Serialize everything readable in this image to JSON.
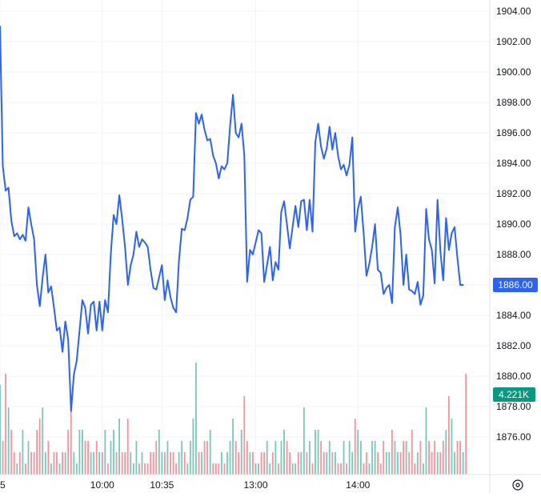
{
  "chart_data": {
    "type": "line",
    "title": "",
    "xlabel": "",
    "ylabel": "",
    "ylim": [
      1874.5,
      1905
    ],
    "y_ticks": [
      "1904.00",
      "1902.00",
      "1900.00",
      "1898.00",
      "1896.00",
      "1894.00",
      "1892.00",
      "1890.00",
      "1888.00",
      "1886.00",
      "1884.00",
      "1882.00",
      "1880.00",
      "1878.00",
      "1876.00"
    ],
    "x_ticks": [
      {
        "label": "5",
        "index": 0
      },
      {
        "label": "10:00",
        "index": 36
      },
      {
        "label": "10:35",
        "index": 57
      },
      {
        "label": "13:00",
        "index": 90
      },
      {
        "label": "14:00",
        "index": 126
      }
    ],
    "grid": true,
    "series": [
      {
        "color": "#2962ff",
        "values": [
          1903.0,
          1893.8,
          1892.2,
          1892.4,
          1890.2,
          1889.2,
          1889.4,
          1889.0,
          1889.3,
          1888.9,
          1891.1,
          1890.0,
          1889.0,
          1886.0,
          1884.6,
          1886.5,
          1888.0,
          1885.5,
          1885.9,
          1884.5,
          1883.0,
          1883.2,
          1881.6,
          1883.6,
          1882.4,
          1877.7,
          1880.1,
          1881.0,
          1883.0,
          1885.0,
          1884.5,
          1882.8,
          1884.7,
          1884.9,
          1883.0,
          1884.9,
          1883.0,
          1885.0,
          1884.2,
          1888.0,
          1890.6,
          1890.0,
          1891.9,
          1890.3,
          1888.5,
          1886.0,
          1887.3,
          1888.0,
          1889.5,
          1888.5,
          1889.0,
          1888.8,
          1888.5,
          1887.0,
          1885.8,
          1885.7,
          1886.5,
          1887.3,
          1885.0,
          1886.3,
          1885.2,
          1884.5,
          1884.2,
          1887.6,
          1889.7,
          1889.6,
          1890.4,
          1891.6,
          1891.8,
          1897.3,
          1896.6,
          1897.2,
          1896.2,
          1895.5,
          1895.6,
          1894.5,
          1894.0,
          1893.0,
          1893.8,
          1893.6,
          1894.0,
          1896.5,
          1898.5,
          1896.0,
          1895.7,
          1896.6,
          1894.5,
          1886.2,
          1888.3,
          1888.0,
          1888.8,
          1889.6,
          1889.4,
          1886.2,
          1887.3,
          1888.5,
          1886.3,
          1887.5,
          1887.0,
          1890.8,
          1891.5,
          1890.0,
          1888.4,
          1889.8,
          1891.2,
          1889.8,
          1891.5,
          1891.6,
          1889.6,
          1891.6,
          1889.5,
          1895.4,
          1896.6,
          1895.1,
          1894.3,
          1895.0,
          1896.4,
          1894.9,
          1896.0,
          1894.5,
          1893.6,
          1893.9,
          1893.2,
          1893.9,
          1895.7,
          1889.5,
          1891.0,
          1891.8,
          1889.4,
          1886.6,
          1887.4,
          1888.5,
          1890.0,
          1887.0,
          1886.8,
          1885.4,
          1885.8,
          1886.0,
          1884.8,
          1889.8,
          1891.1,
          1889.3,
          1886.0,
          1888.0,
          1885.7,
          1885.6,
          1885.4,
          1886.2,
          1884.7,
          1885.3,
          1891.0,
          1889.0,
          1888.3,
          1886.1,
          1891.6,
          1888.2,
          1886.3,
          1890.4,
          1888.3,
          1889.4,
          1889.8,
          1887.8,
          1886.0,
          1886.0
        ]
      }
    ],
    "volume": {
      "values": [
        8,
        3,
        9,
        6,
        4,
        2,
        1,
        2,
        4,
        1,
        3,
        2,
        2,
        4,
        5,
        6,
        2,
        3,
        1,
        2,
        2,
        1,
        2,
        2,
        4,
        7,
        2,
        1,
        4,
        4,
        3,
        3,
        2,
        2,
        3,
        2,
        2,
        4,
        1,
        3,
        4,
        2,
        5,
        2,
        2,
        5,
        2,
        1,
        3,
        1,
        2,
        1,
        1,
        2,
        2,
        3,
        4,
        2,
        2,
        3,
        2,
        2,
        1,
        2,
        3,
        2,
        1,
        3,
        5,
        10,
        2,
        2,
        3,
        3,
        4,
        1,
        1,
        1,
        2,
        1,
        2,
        3,
        5,
        3,
        2,
        4,
        7,
        3,
        2,
        2,
        1,
        1,
        2,
        2,
        3,
        1,
        2,
        3,
        1,
        3,
        4,
        3,
        2,
        1,
        1,
        2,
        2,
        6,
        2,
        3,
        1,
        4,
        4,
        3,
        2,
        2,
        3,
        2,
        2,
        1,
        1,
        3,
        1,
        3,
        2,
        5,
        4,
        3,
        1,
        2,
        1,
        3,
        3,
        2,
        1,
        3,
        2,
        2,
        4,
        3,
        2,
        2,
        3,
        3,
        2,
        4,
        1,
        2,
        3,
        1,
        6,
        3,
        2,
        3,
        2,
        2,
        3,
        4,
        7,
        5,
        2,
        3,
        3,
        2,
        9
      ],
      "last_label": "4.221K",
      "last_color": "#089981"
    },
    "last_price_label": "1886.00",
    "last_price_color": "#2962ff"
  }
}
